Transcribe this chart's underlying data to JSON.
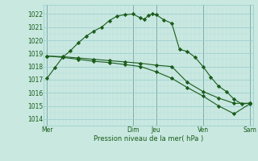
{
  "background_color": "#c8e8e0",
  "grid_major_color": "#99cccc",
  "grid_minor_color": "#bbdddd",
  "line_color": "#1a5c1a",
  "marker_color": "#1a5c1a",
  "title": "Pression niveau de la mer( hPa )",
  "ylim": [
    1013.5,
    1022.7
  ],
  "yticks": [
    1014,
    1015,
    1016,
    1017,
    1018,
    1019,
    1020,
    1021,
    1022
  ],
  "xlim": [
    -0.2,
    13.2
  ],
  "x_day_labels": [
    "Mer",
    "",
    "Dim",
    "Jeu",
    "",
    "Ven",
    "",
    "Sam"
  ],
  "x_day_positions": [
    0.0,
    3.25,
    5.5,
    7.0,
    8.75,
    10.0,
    11.5,
    13.0
  ],
  "vline_positions": [
    0.0,
    5.5,
    7.0,
    10.0,
    13.0
  ],
  "line1_x": [
    0.0,
    0.5,
    1.0,
    1.5,
    2.0,
    2.5,
    3.0,
    3.5,
    4.0,
    4.5,
    5.0,
    5.5,
    6.0,
    6.25,
    6.5,
    6.75,
    7.0,
    7.5,
    8.0,
    8.5,
    9.0,
    9.5,
    10.0,
    10.5,
    11.0,
    11.5,
    12.0,
    12.5,
    13.0
  ],
  "line1_y": [
    1017.1,
    1017.9,
    1018.7,
    1019.2,
    1019.8,
    1020.3,
    1020.7,
    1021.0,
    1021.5,
    1021.85,
    1021.95,
    1022.0,
    1021.7,
    1021.6,
    1021.9,
    1022.0,
    1021.95,
    1021.55,
    1021.3,
    1019.3,
    1019.15,
    1018.7,
    1018.0,
    1017.2,
    1016.5,
    1016.1,
    1015.5,
    1015.15,
    1015.2
  ],
  "line2_x": [
    0.0,
    1.0,
    2.0,
    3.0,
    4.0,
    5.0,
    6.0,
    7.0,
    8.0,
    9.0,
    10.0,
    11.0,
    12.0,
    13.0
  ],
  "line2_y": [
    1018.8,
    1018.75,
    1018.65,
    1018.55,
    1018.45,
    1018.35,
    1018.25,
    1018.1,
    1018.0,
    1016.8,
    1016.1,
    1015.6,
    1015.2,
    1015.2
  ],
  "line3_x": [
    0.0,
    1.0,
    2.0,
    3.0,
    4.0,
    5.0,
    6.0,
    7.0,
    8.0,
    9.0,
    10.0,
    11.0,
    12.0,
    13.0
  ],
  "line3_y": [
    1018.8,
    1018.7,
    1018.55,
    1018.4,
    1018.3,
    1018.15,
    1018.0,
    1017.6,
    1017.1,
    1016.4,
    1015.75,
    1015.0,
    1014.4,
    1015.15
  ]
}
